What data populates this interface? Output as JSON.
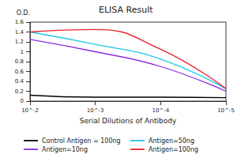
{
  "chart_data": {
    "type": "line",
    "title": "ELISA Result",
    "y_label": "O.D.",
    "x_label": "Serial Dilutions of Antibody",
    "categories": [
      "10^-2",
      "10^-3",
      "10^-4",
      "10^-5"
    ],
    "series": [
      {
        "name": "Control Antigen = 100ng",
        "color": "#000000",
        "values": [
          0.12,
          0.08,
          0.08,
          0.07
        ]
      },
      {
        "name": "Antigen=10ng",
        "color": "#8a2be2",
        "values": [
          1.25,
          1.0,
          0.7,
          0.2
        ]
      },
      {
        "name": "Antigen=50ng",
        "color": "#1ec8e6",
        "values": [
          1.4,
          1.15,
          0.85,
          0.25
        ]
      },
      {
        "name": "Antigen=100ng",
        "color": "#e8202a",
        "values": [
          1.4,
          1.45,
          1.05,
          0.25
        ]
      }
    ],
    "ylim": [
      0,
      1.6
    ],
    "yticks": [
      0,
      0.2,
      0.4,
      0.6,
      0.8,
      1,
      1.2,
      1.4,
      1.6
    ],
    "grid": false,
    "legend": "bottom",
    "marker": "none",
    "line_style": "solid"
  }
}
